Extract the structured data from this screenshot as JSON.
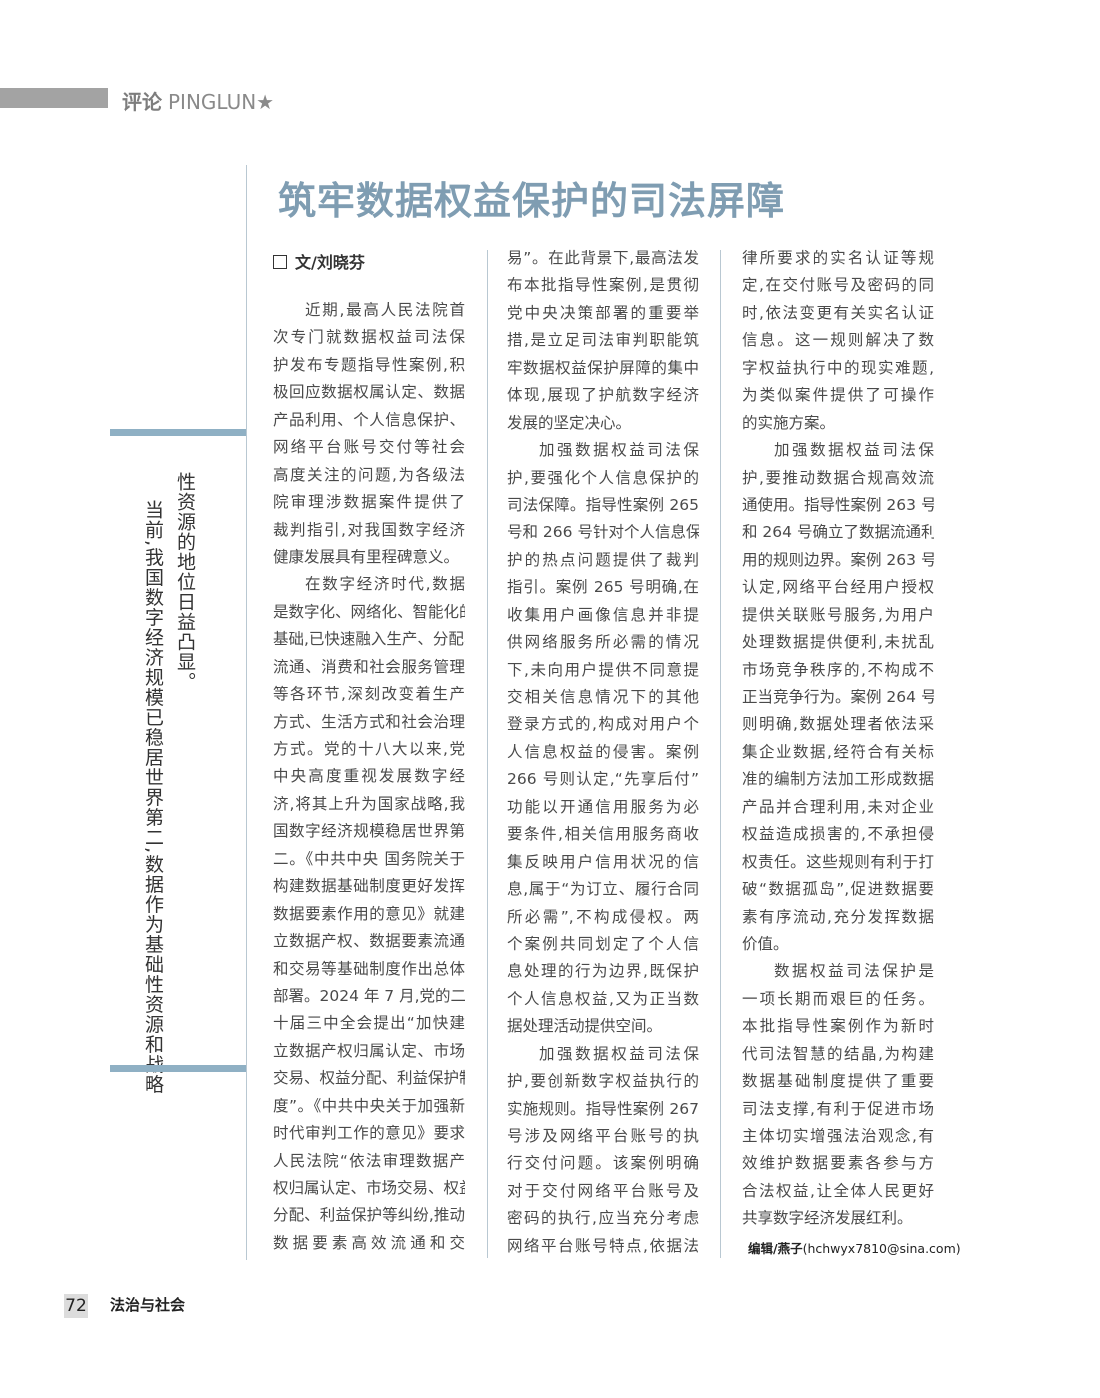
{
  "header": {
    "section_cn": "评论",
    "section_en": "PINGLUN",
    "star": "★"
  },
  "article": {
    "title": "筑牢数据权益保护的司法屏障",
    "author": "文/刘晓芬",
    "columns": [
      [
        "近期,最高人民法院首",
        "次专门就数据权益司法保",
        "护发布专题指导性案例,积",
        "极回应数据权属认定、数据",
        "产品利用、个人信息保护、",
        "网络平台账号交付等社会",
        "高度关注的问题,为各级法",
        "院审理涉数据案件提供了",
        "裁判指引,对我国数字经济",
        "健康发展具有里程碑意义。",
        "在数字经济时代,数据",
        "是数字化、网络化、智能化的",
        "基础,已快速融入生产、分配、",
        "流通、消费和社会服务管理",
        "等各环节,深刻改变着生产",
        "方式、生活方式和社会治理",
        "方式。党的十八大以来,党",
        "中央高度重视发展数字经",
        "济,将其上升为国家战略,我",
        "国数字经济规模稳居世界第",
        "二。《中共中央 国务院关于",
        "构建数据基础制度更好发挥",
        "数据要素作用的意见》就建",
        "立数据产权、数据要素流通",
        "和交易等基础制度作出总体",
        "部署。2024 年 7 月,党的二",
        "十届三中全会提出“加快建",
        "立数据产权归属认定、市场",
        "交易、权益分配、利益保护制",
        "度”。《中共中央关于加强新",
        "时代审判工作的意见》要求",
        "人民法院“依法审理数据产",
        "权归属认定、市场交易、权益",
        "分配、利益保护等纠纷,推动",
        "数据要素高效流通和交"
      ],
      [
        "易”。在此背景下,最高法发",
        "布本批指导性案例,是贯彻",
        "党中央决策部署的重要举",
        "措,是立足司法审判职能筑",
        "牢数据权益保护屏障的集中",
        "体现,展现了护航数字经济",
        "发展的坚定决心。",
        "加强数据权益司法保",
        "护,要强化个人信息保护的",
        "司法保障。指导性案例 265",
        "号和 266 号针对个人信息保",
        "护的热点问题提供了裁判",
        "指引。案例 265 号明确,在",
        "收集用户画像信息并非提",
        "供网络服务所必需的情况",
        "下,未向用户提供不同意提",
        "交相关信息情况下的其他",
        "登录方式的,构成对用户个",
        "人信息权益的侵害。案例",
        "266 号则认定,“先享后付”",
        "功能以开通信用服务为必",
        "要条件,相关信用服务商收",
        "集反映用户信用状况的信",
        "息,属于“为订立、履行合同",
        "所必需”,不构成侵权。两",
        "个案例共同划定了个人信",
        "息处理的行为边界,既保护",
        "个人信息权益,又为正当数",
        "据处理活动提供空间。",
        "加强数据权益司法保",
        "护,要创新数字权益执行的",
        "实施规则。指导性案例 267",
        "号涉及网络平台账号的执",
        "行交付问题。该案例明确",
        "对于交付网络平台账号及",
        "密码的执行,应当充分考虑",
        "网络平台账号特点,依据法"
      ],
      [
        "律所要求的实名认证等规",
        "定,在交付账号及密码的同",
        "时,依法变更有关实名认证",
        "信息。这一规则解决了数",
        "字权益执行中的现实难题,",
        "为类似案件提供了可操作",
        "的实施方案。",
        "加强数据权益司法保",
        "护,要推动数据合规高效流",
        "通使用。指导性案例 263 号",
        "和 264 号确立了数据流通利",
        "用的规则边界。案例 263 号",
        "认定,网络平台经用户授权",
        "提供关联账号服务,为用户",
        "处理数据提供便利,未扰乱",
        "市场竞争秩序的,不构成不",
        "正当竞争行为。案例 264 号",
        "则明确,数据处理者依法采",
        "集企业数据,经符合有关标",
        "准的编制方法加工形成数据",
        "产品并合理利用,未对企业",
        "权益造成损害的,不承担侵",
        "权责任。这些规则有利于打",
        "破“数据孤岛”,促进数据要",
        "素有序流动,充分发挥数据",
        "价值。",
        "数据权益司法保护是",
        "一项长期而艰巨的任务。",
        "本批指导性案例作为新时",
        "代司法智慧的结晶,为构建",
        "数据基础制度提供了重要",
        "司法支撑,有利于促进市场",
        "主体切实增强法治观念,有",
        "效维护数据要素各参与方",
        "合法权益,让全体人民更好",
        "共享数字经济发展红利。"
      ]
    ],
    "editor": {
      "label": "编辑/燕子",
      "email": "(hchwyx7810@sina.com)"
    }
  },
  "pull_quote": [
    "当前,我国数字经济规模已稳居世界第二,数据作为基础性资源和战略",
    "性资源的地位日益凸显。"
  ],
  "footer": {
    "page_number": "72",
    "magazine": "法治与社会"
  },
  "colors": {
    "accent": "#7f9db2",
    "bar": "#8fb0c4",
    "header_bar": "#a3a3a3"
  }
}
